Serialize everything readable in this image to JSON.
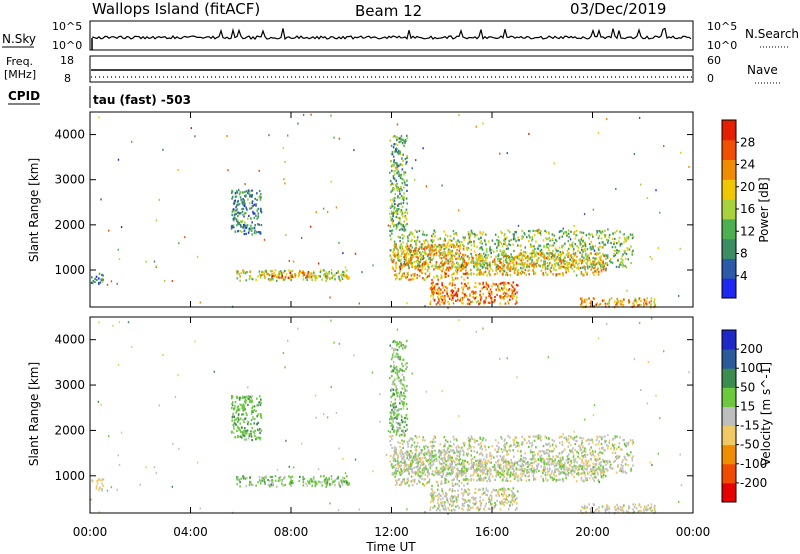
{
  "header": {
    "station": "Wallops Island (fitACF)",
    "beam": "Beam 12",
    "date": "03/Dec/2019"
  },
  "noise_panel": {
    "left_label": "N.Sky",
    "right_label": "N.Search",
    "tick_top": "10^5",
    "tick_bottom": "10^0",
    "right_tick_top": "10^5",
    "right_tick_bottom": "10^0"
  },
  "freq_panel": {
    "left_label_line1": "Freq.",
    "left_label_line2": "[MHz]",
    "tick_top": "18",
    "tick_bottom": "8",
    "right_label": "Nave",
    "right_tick_top": "60",
    "right_tick_bottom": "0"
  },
  "cpid": {
    "label": "CPID",
    "value": "tau (fast) -503"
  },
  "colors": {
    "power_scale": [
      "#1e28f0",
      "#2a5aa8",
      "#3c8c64",
      "#4caf50",
      "#a8d23c",
      "#f0c800",
      "#f08c00",
      "#f05000",
      "#e61e00"
    ],
    "velocity_scale": [
      "#e60000",
      "#f04b00",
      "#f08c00",
      "#f0c864",
      "#bebebe",
      "#6cc83c",
      "#3c8c50",
      "#2a5a9a",
      "#1e28c8"
    ]
  },
  "chart_data": [
    {
      "type": "heatmap",
      "name": "power",
      "ylabel": "Slant Range [km]",
      "ylim": [
        180,
        4500
      ],
      "yticks": [
        "1000",
        "2000",
        "3000",
        "4000"
      ],
      "xlim_hours": [
        0,
        24
      ],
      "colorbar": {
        "label": "Power [dB]",
        "ticks": [
          "4",
          "8",
          "12",
          "16",
          "20",
          "24",
          "28"
        ],
        "range": [
          0,
          32
        ]
      },
      "echo_regions": [
        {
          "t_start": 5.8,
          "t_end": 10.3,
          "r_min": 780,
          "r_max": 1020,
          "level": 17
        },
        {
          "t_start": 7.0,
          "t_end": 8.8,
          "r_min": 850,
          "r_max": 980,
          "level": 24
        },
        {
          "t_start": 11.9,
          "t_end": 21.6,
          "r_min": 1050,
          "r_max": 1900,
          "level": 14
        },
        {
          "t_start": 12.0,
          "t_end": 15.0,
          "r_min": 800,
          "r_max": 1600,
          "level": 22
        },
        {
          "t_start": 13.5,
          "t_end": 17.0,
          "r_min": 250,
          "r_max": 750,
          "level": 24
        },
        {
          "t_start": 15.0,
          "t_end": 20.5,
          "r_min": 900,
          "r_max": 1400,
          "level": 20
        },
        {
          "t_start": 5.6,
          "t_end": 6.8,
          "r_min": 1800,
          "r_max": 2800,
          "level": 9
        },
        {
          "t_start": 11.9,
          "t_end": 12.6,
          "r_min": 1900,
          "r_max": 4000,
          "level": 12
        },
        {
          "t_start": 0.0,
          "t_end": 0.5,
          "r_min": 700,
          "r_max": 950,
          "level": 8
        },
        {
          "t_start": 19.5,
          "t_end": 22.5,
          "r_min": 200,
          "r_max": 400,
          "level": 22
        }
      ]
    },
    {
      "type": "heatmap",
      "name": "velocity",
      "ylabel": "Slant Range [km]",
      "ylim": [
        180,
        4500
      ],
      "yticks": [
        "1000",
        "2000",
        "3000",
        "4000"
      ],
      "xlim_hours": [
        0,
        24
      ],
      "xticks": [
        "00:00",
        "04:00",
        "08:00",
        "12:00",
        "16:00",
        "20:00",
        "00:00"
      ],
      "xlabel": "Time UT",
      "colorbar": {
        "label": "Velocity [m s^-1]",
        "ticks": [
          "-200",
          "-100",
          "-50",
          "-15",
          "15",
          "50",
          "100",
          "200"
        ],
        "range": [
          -250,
          250
        ]
      },
      "echo_regions": [
        {
          "t_start": 5.8,
          "t_end": 10.3,
          "r_min": 780,
          "r_max": 1020,
          "level": 30
        },
        {
          "t_start": 11.9,
          "t_end": 21.6,
          "r_min": 1050,
          "r_max": 1900,
          "level": 0
        },
        {
          "t_start": 12.0,
          "t_end": 15.0,
          "r_min": 800,
          "r_max": 1600,
          "level": 5
        },
        {
          "t_start": 13.5,
          "t_end": 17.0,
          "r_min": 250,
          "r_max": 750,
          "level": -5
        },
        {
          "t_start": 15.0,
          "t_end": 20.5,
          "r_min": 900,
          "r_max": 1400,
          "level": 0
        },
        {
          "t_start": 5.6,
          "t_end": 6.8,
          "r_min": 1800,
          "r_max": 2800,
          "level": 40
        },
        {
          "t_start": 11.9,
          "t_end": 12.6,
          "r_min": 1900,
          "r_max": 4000,
          "level": 30
        },
        {
          "t_start": 0.0,
          "t_end": 0.5,
          "r_min": 700,
          "r_max": 950,
          "level": -20
        },
        {
          "t_start": 19.5,
          "t_end": 22.5,
          "r_min": 200,
          "r_max": 400,
          "level": -10
        }
      ]
    }
  ]
}
